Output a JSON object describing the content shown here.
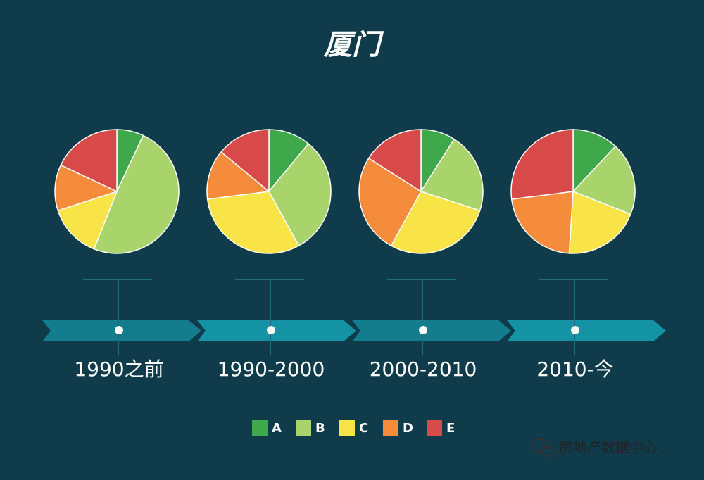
{
  "title": "厦门",
  "watermark": "房地产数据中心",
  "chart_data": [
    {
      "type": "pie",
      "label": "1990之前",
      "categories": [
        "A",
        "B",
        "C",
        "D",
        "E"
      ],
      "colors": [
        "#3ea84b",
        "#a9d36b",
        "#f8e446",
        "#f58c3b",
        "#d84a4a"
      ],
      "values": [
        7,
        49,
        14,
        12,
        18
      ]
    },
    {
      "type": "pie",
      "label": "1990-2000",
      "categories": [
        "A",
        "B",
        "C",
        "D",
        "E"
      ],
      "colors": [
        "#3ea84b",
        "#a9d36b",
        "#f8e446",
        "#f58c3b",
        "#d84a4a"
      ],
      "values": [
        11,
        31,
        31,
        13,
        14
      ]
    },
    {
      "type": "pie",
      "label": "2000-2010",
      "categories": [
        "A",
        "B",
        "C",
        "D",
        "E"
      ],
      "colors": [
        "#3ea84b",
        "#a9d36b",
        "#f8e446",
        "#f58c3b",
        "#d84a4a"
      ],
      "values": [
        9,
        21,
        28,
        26,
        16
      ]
    },
    {
      "type": "pie",
      "label": "2010-今",
      "categories": [
        "A",
        "B",
        "C",
        "D",
        "E"
      ],
      "colors": [
        "#3ea84b",
        "#a9d36b",
        "#f8e446",
        "#f58c3b",
        "#d84a4a"
      ],
      "values": [
        12,
        19,
        20,
        22,
        27
      ]
    }
  ]
}
